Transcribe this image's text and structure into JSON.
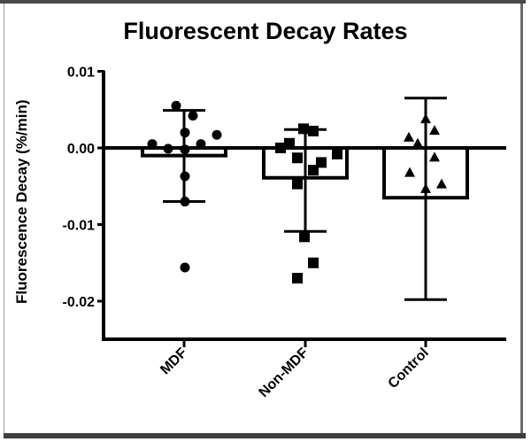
{
  "chart_data": {
    "type": "bar",
    "title": "Fluorescent Decay Rates",
    "xlabel": "",
    "ylabel": "Fluorescence Decay (%/min)",
    "ylim": [
      -0.025,
      0.01
    ],
    "yticks": [
      "0.01",
      "0.00",
      "-0.01",
      "-0.02"
    ],
    "categories": [
      "MDF",
      "Non-MDF",
      "Control"
    ],
    "series": [
      {
        "name": "mean",
        "values": [
          -0.001,
          -0.0039,
          -0.0065
        ]
      }
    ],
    "error_bars": [
      {
        "category": "MDF",
        "upper": 0.0049,
        "lower": -0.007
      },
      {
        "category": "Non-MDF",
        "upper": 0.0024,
        "lower": -0.0109
      },
      {
        "category": "Control",
        "upper": 0.0065,
        "lower": -0.0198
      }
    ],
    "points": {
      "MDF": {
        "marker": "circle",
        "values": [
          0.0055,
          0.0042,
          0.002,
          0.0017,
          0.0005,
          -0.0001,
          -0.0002,
          0.0005,
          -0.0037,
          -0.007,
          -0.0156
        ]
      },
      "Non-MDF": {
        "marker": "square",
        "values": [
          0.0025,
          0.0022,
          0.0,
          0.0006,
          -0.0008,
          -0.0013,
          -0.0019,
          -0.0029,
          -0.0047,
          -0.0116,
          -0.015,
          -0.017
        ]
      },
      "Control": {
        "marker": "triangle",
        "values": [
          0.0038,
          0.0023,
          0.0014,
          0.0006,
          -0.0012,
          -0.0032,
          -0.0047,
          -0.0053
        ]
      }
    },
    "grid": false,
    "legend": "none"
  },
  "labels": {
    "title": "Fluorescent Decay Rates",
    "ylabel": "Fluorescence Decay (%/min)",
    "yticks": [
      "0.01",
      "0.00",
      "-0.01",
      "-0.02"
    ],
    "xticks": [
      "MDF",
      "Non-MDF",
      "Control"
    ]
  }
}
